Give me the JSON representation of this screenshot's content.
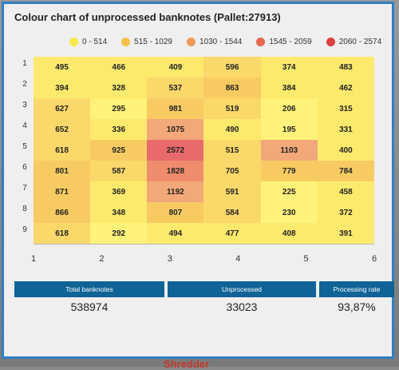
{
  "backdrop": {
    "partial_text": "Shredder"
  },
  "dialog": {
    "title": "Colour chart of unprocessed banknotes (Pallet:27913)"
  },
  "legend": [
    {
      "label": "0 - 514",
      "color": "#f7e94a"
    },
    {
      "label": "515 - 1029",
      "color": "#f6c04a"
    },
    {
      "label": "1030 - 1544",
      "color": "#ee9a5a"
    },
    {
      "label": "1545 - 2059",
      "color": "#e5674d"
    },
    {
      "label": "2060 - 2574",
      "color": "#d9403e"
    }
  ],
  "chart_data": {
    "type": "heatmap",
    "title": "Colour chart of unprocessed banknotes (Pallet:27913)",
    "x": [
      "1",
      "2",
      "3",
      "4",
      "5",
      "6"
    ],
    "y": [
      "1",
      "2",
      "3",
      "4",
      "5",
      "6",
      "7",
      "8",
      "9"
    ],
    "values": [
      [
        495,
        466,
        409,
        596,
        374,
        483
      ],
      [
        394,
        328,
        537,
        863,
        384,
        462
      ],
      [
        627,
        295,
        981,
        519,
        206,
        315
      ],
      [
        652,
        336,
        1075,
        490,
        195,
        331
      ],
      [
        618,
        925,
        2572,
        515,
        1103,
        400
      ],
      [
        801,
        587,
        1828,
        705,
        779,
        784
      ],
      [
        871,
        369,
        1192,
        591,
        225,
        458
      ],
      [
        866,
        348,
        807,
        584,
        230,
        372
      ],
      [
        618,
        292,
        494,
        477,
        408,
        391
      ]
    ],
    "color_scale": [
      "#fff27a",
      "#fbd86a",
      "#f5c06a",
      "#f2a878",
      "#e96a6a"
    ]
  },
  "stats": {
    "total_label": "Total banknotes",
    "total_value": "538974",
    "unprocessed_label": "Unprocessed",
    "unprocessed_value": "33023",
    "rate_label": "Processing rate",
    "rate_value": "93,87%"
  }
}
